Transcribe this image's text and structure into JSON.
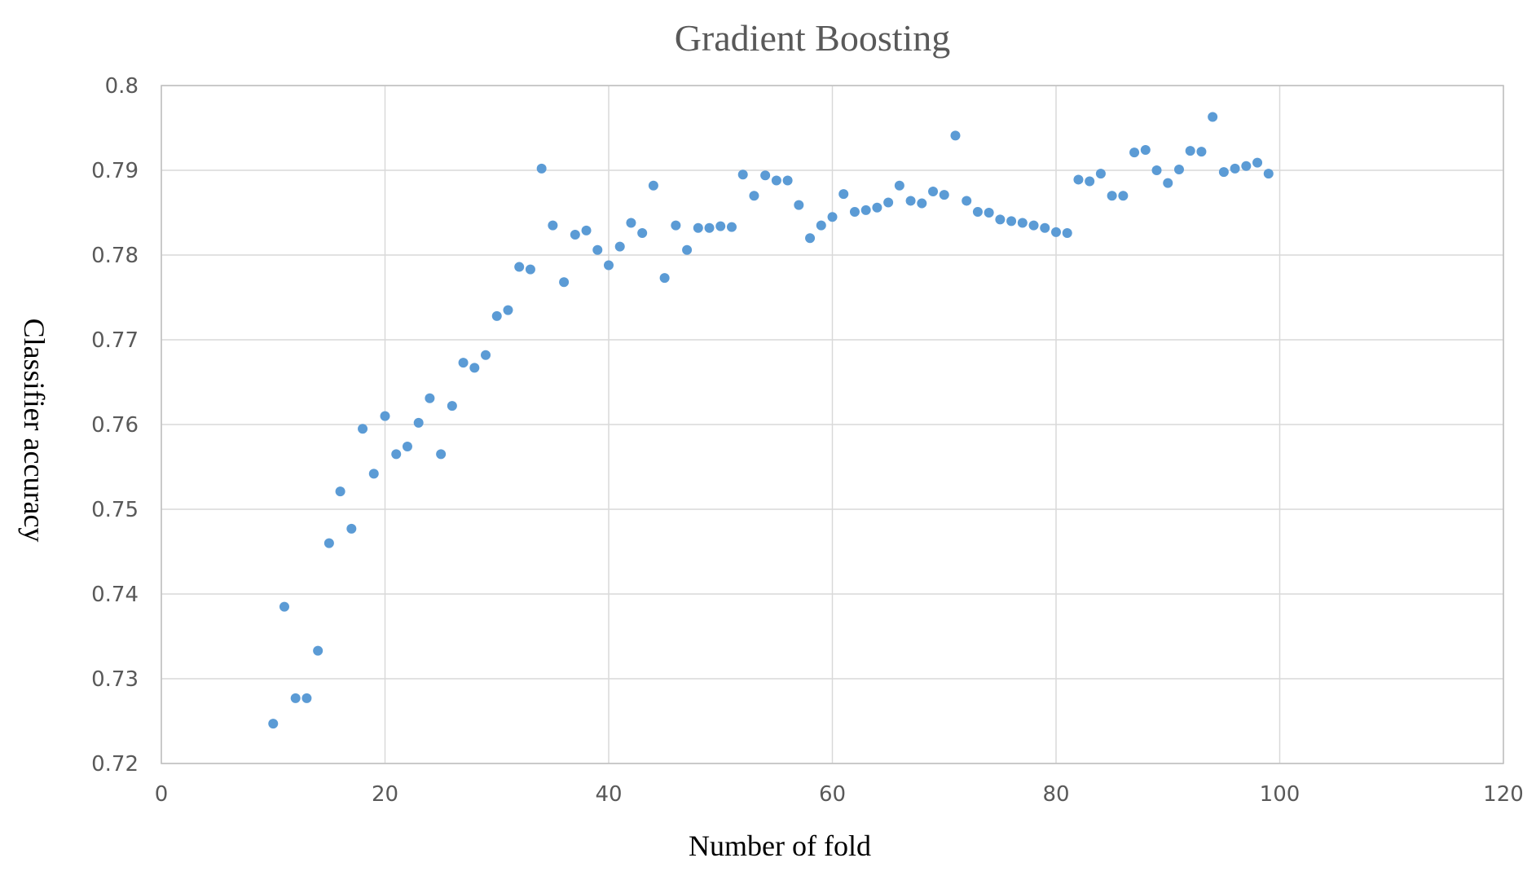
{
  "chart_data": {
    "type": "scatter",
    "title": "Gradient Boosting",
    "xlabel": "Number of fold",
    "ylabel": "Classifier accuracy",
    "xlim": [
      0,
      120
    ],
    "ylim": [
      0.72,
      0.8
    ],
    "xticks": [
      0,
      20,
      40,
      60,
      80,
      100,
      120
    ],
    "xtick_labels": [
      "0",
      "20",
      "40",
      "60",
      "80",
      "100",
      "120"
    ],
    "yticks": [
      0.72,
      0.73,
      0.74,
      0.75,
      0.76,
      0.77,
      0.78,
      0.79,
      0.8
    ],
    "ytick_labels": [
      "0.72",
      "0.73",
      "0.74",
      "0.75",
      "0.76",
      "0.77",
      "0.78",
      "0.79",
      "0.8"
    ],
    "grid": true,
    "legend": "none",
    "colors": {
      "marker": "#5b9bd5",
      "grid": "#d9d9d9",
      "axis": "#bfbfbf"
    },
    "series": [
      {
        "x": [
          10,
          11,
          12,
          13,
          14,
          15,
          16,
          17,
          18,
          19,
          20,
          21,
          22,
          23,
          24,
          25,
          26,
          27,
          28,
          29,
          30,
          31,
          32,
          33,
          34,
          35,
          36,
          37,
          38,
          39,
          40,
          41,
          42,
          43,
          44,
          45,
          46,
          47,
          48,
          49,
          50,
          51,
          52,
          53,
          54,
          55,
          56,
          57,
          58,
          59,
          60,
          61,
          62,
          63,
          64,
          65,
          66,
          67,
          68,
          69,
          70,
          71,
          72,
          73,
          74,
          75,
          76,
          77,
          78,
          79,
          80,
          81,
          82,
          83,
          84,
          85,
          86,
          87,
          88,
          89,
          90,
          91,
          92,
          93,
          94,
          95,
          96,
          97,
          98,
          99
        ],
        "y": [
          0.7247,
          0.7385,
          0.7277,
          0.7277,
          0.7333,
          0.746,
          0.7521,
          0.7477,
          0.7595,
          0.7542,
          0.761,
          0.7565,
          0.7574,
          0.7602,
          0.7631,
          0.7565,
          0.7622,
          0.7673,
          0.7667,
          0.7682,
          0.7728,
          0.7735,
          0.7786,
          0.7783,
          0.7902,
          0.7835,
          0.7768,
          0.7824,
          0.7829,
          0.7806,
          0.7788,
          0.781,
          0.7838,
          0.7826,
          0.7882,
          0.7773,
          0.7835,
          0.7806,
          0.7832,
          0.7832,
          0.7834,
          0.7833,
          0.7895,
          0.787,
          0.7894,
          0.7888,
          0.7888,
          0.7859,
          0.782,
          0.7835,
          0.7845,
          0.7872,
          0.7851,
          0.7853,
          0.7856,
          0.7862,
          0.7882,
          0.7864,
          0.7861,
          0.7875,
          0.7871,
          0.7941,
          0.7864,
          0.7851,
          0.785,
          0.7842,
          0.784,
          0.7838,
          0.7835,
          0.7832,
          0.7827,
          0.7826,
          0.7889,
          0.7887,
          0.7896,
          0.787,
          0.787,
          0.7921,
          0.7924,
          0.79,
          0.7885,
          0.7901,
          0.7923,
          0.7922,
          0.7963,
          0.7898,
          0.7902,
          0.7905,
          0.7909,
          0.7896
        ]
      }
    ]
  }
}
